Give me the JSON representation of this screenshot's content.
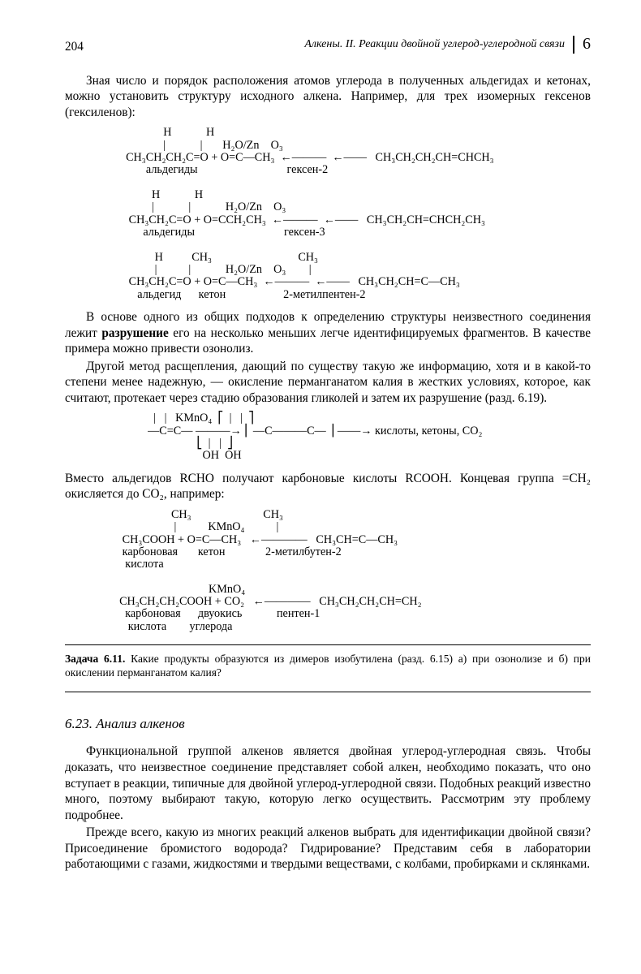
{
  "header": {
    "page_number": "204",
    "running_title": "Алкены. II. Реакции двойной углерод-углеродной связи",
    "chapter": "6"
  },
  "p1": "Зная число и порядок расположения атомов углерода в полученных альдегидах и кетонах, можно установить структуру исходного алкена. Например, для трех изомерных гексенов (гексиленов):",
  "chem1": "               H            H\n               |            |       H₂O/Zn    O₃\n  CH₃CH₂CH₂C=O + O=C—CH₃  ←———  ←——   CH₃CH₂CH₂CH=CHCH₃\n         альдегиды                               гексен-2\n\n           H            H\n           |            |            H₂O/Zn    O₃\n   CH₃CH₂C=O + O=CCH₂CH₃  ←———  ←——   CH₃CH₂CH=CHCH₂CH₃\n        альдегиды                               гексен-3\n\n            H          CH₃                              CH₃\n            |           |            H₂O/Zn    O₃        |\n   CH₃CH₂C=O + O=C—CH₃  ←———  ←——   CH₃CH₂CH=C—CH₃\n      альдегид      кетон                    2-метилпентен-2",
  "p2a": "В основе одного из общих подходов к определению структуры неизвестного соединения лежит ",
  "p2b": "разрушение",
  "p2c": " его на несколько меньших легче идентифицируемых фрагментов. В качестве примера можно привести озонолиз.",
  "p3": "Другой метод расщепления, дающий по существу такую же информацию, хотя и в какой-то степени менее надежную, — окисление перманганатом калия в жестких условиях, которое, как считают, протекает через стадию образования гликолей и затем их разрушение (разд. 6.19).",
  "chem2": "    |   |   KMnO₄  ⎡  |   |  ⎤\n  —C=C— ———→ ⎢ —C———C— ⎥ ——→ кислоты, кетоны, CO₂\n                   ⎣  |   |  ⎦\n                     OH  OH",
  "p4": "Вместо альдегидов RCHO получают карбоновые кислоты RCOOH. Концевая группа  =CH₂  окисляется до CO₂, например:",
  "chem3": "                    CH₃                         CH₃\n                     |           KMnO₄           |\n   CH₃COOH + O=C—CH₃   ←————   CH₃CH=C—CH₃\n   карбоновая       кетон              2-метилбутен-2\n    кислота\n\n                                 KMnO₄\n  CH₃CH₂CH₂COOH + CO₂   ←————   CH₃CH₂CH₂CH=CH₂\n    карбоновая      двуокись            пентен-1\n     кислота        углерода",
  "task_label": "Задача 6.11.",
  "task_text": " Какие продукты образуются из димеров изобутилена (разд. 6.15) a) при озонолизе и б) при окислении перманганатом калия?",
  "section": "6.23. Анализ алкенов",
  "p5": "Функциональной группой алкенов является двойная углерод-углеродная связь. Чтобы доказать, что неизвестное соединение представляет собой алкен, необходимо показать, что оно вступает в реакции, типичные для двойной углерод-углеродной связи. Подобных реакций известно много, поэтому выбирают такую, которую легко осуществить. Рассмотрим эту проблему подробнее.",
  "p6": "Прежде всего, какую из многих реакций алкенов выбрать для идентификации двойной связи? Присоединение бромистого водорода? Гидрирование? Представим себя в лаборатории работающими с газами, жидкостями и твердыми веществами, с колбами, пробирками и склянками."
}
